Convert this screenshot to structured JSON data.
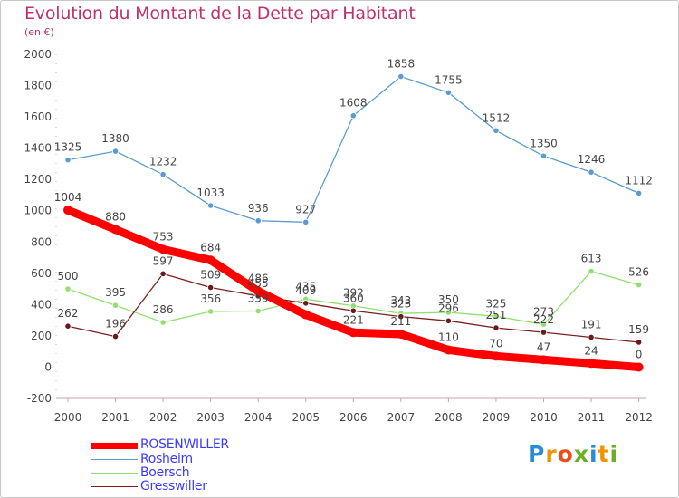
{
  "header": {
    "title": "Evolution du Montant de la Dette par Habitant",
    "subtitle": "(en €)"
  },
  "logo": {
    "text": "Proxiti",
    "letters": [
      "P",
      "r",
      "o",
      "x",
      "i",
      "t",
      "i"
    ],
    "colors": [
      "#2a8bd6",
      "#f29400",
      "#e94e1b",
      "#6ab023",
      "#2a8bd6",
      "#f29400",
      "#6ab023"
    ]
  },
  "chart_data": {
    "type": "line",
    "x": [
      "2000",
      "2001",
      "2002",
      "2003",
      "2004",
      "2005",
      "2006",
      "2007",
      "2008",
      "2009",
      "2010",
      "2011",
      "2012"
    ],
    "ylim": [
      -200,
      2000
    ],
    "yticks": [
      "-200",
      "0",
      "200",
      "400",
      "600",
      "800",
      "1000",
      "1200",
      "1400",
      "1600",
      "1800",
      "2000"
    ],
    "grid": false,
    "legend_position": "bottom-left",
    "series": [
      {
        "name": "Rosheim",
        "color": "#5b9bd1",
        "values": [
          1325,
          1380,
          1232,
          1033,
          936,
          927,
          1608,
          1858,
          1755,
          1512,
          1350,
          1246,
          1112
        ],
        "labels": [
          "1325",
          "1380",
          "1232",
          "1033",
          "936",
          "927",
          "1608",
          "1858",
          "1755",
          "1512",
          "1350",
          "1246",
          "1112"
        ]
      },
      {
        "name": "Boersch",
        "color": "#90e070",
        "values": [
          500,
          395,
          286,
          356,
          359,
          435,
          392,
          343,
          350,
          325,
          273,
          613,
          526
        ],
        "labels": [
          "500",
          "395",
          "286",
          "356",
          "359",
          "435",
          "392",
          "343",
          "350",
          "325",
          "273",
          "613",
          "526"
        ]
      },
      {
        "name": "Gresswiller",
        "color": "#7a2020",
        "values": [
          262,
          196,
          597,
          509,
          455,
          409,
          360,
          323,
          296,
          251,
          222,
          191,
          159
        ],
        "labels": [
          "262",
          "196",
          "597",
          "509",
          "455",
          "409",
          "360",
          "323",
          "296",
          "251",
          "222",
          "191",
          "159"
        ]
      },
      {
        "name": "ROSENWILLER",
        "color": "#ff0000",
        "values": [
          1004,
          880,
          753,
          684,
          486,
          335,
          221,
          211,
          110,
          70,
          47,
          24,
          0
        ],
        "labels": [
          "1004",
          "880",
          "753",
          "684",
          "486",
          "",
          "221",
          "211",
          "110",
          "70",
          "47",
          "24",
          "0"
        ]
      }
    ],
    "legend": [
      "ROSENWILLER",
      "Rosheim",
      "Boersch",
      "Gresswiller"
    ]
  }
}
